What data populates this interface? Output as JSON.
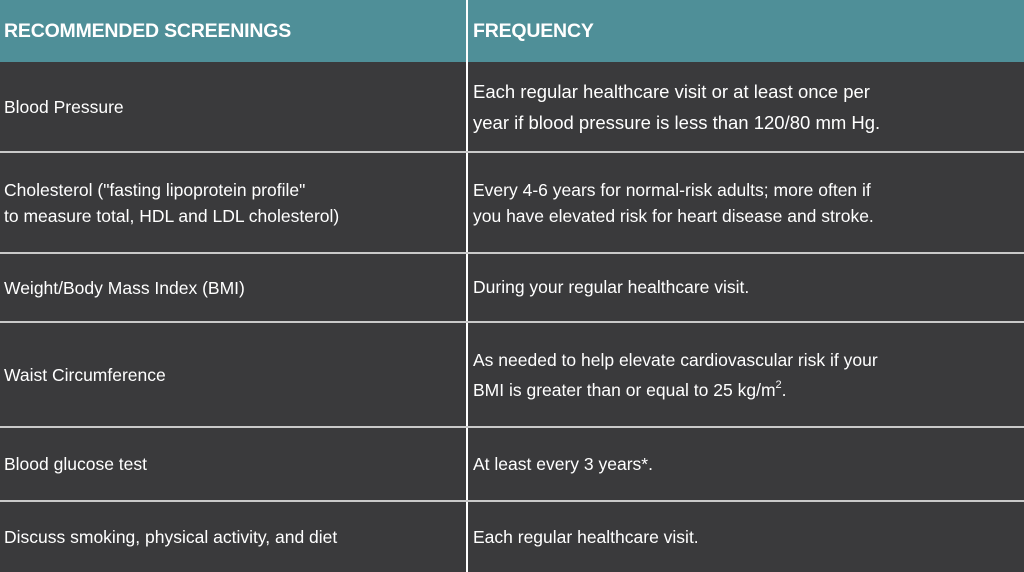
{
  "header": {
    "col1": "RECOMMENDED SCREENINGS",
    "col2": "FREQUENCY"
  },
  "rows": [
    {
      "screening": "Blood Pressure",
      "frequency_line1": "Each regular healthcare visit or at least once per",
      "frequency_line2": "year if blood pressure is less than 120/80 mm Hg."
    },
    {
      "screening_line1": "Cholesterol (\"fasting lipoprotein profile\"",
      "screening_line2": "to measure total, HDL and LDL cholesterol)",
      "frequency_line1": "Every 4-6 years for normal-risk adults; more often if",
      "frequency_line2": "you have elevated risk for heart disease and stroke."
    },
    {
      "screening": "Weight/Body Mass Index (BMI)",
      "frequency": "During your regular healthcare visit."
    },
    {
      "screening": "Waist Circumference",
      "frequency_line1": "As needed to help elevate cardiovascular risk if your",
      "frequency_line2": "BMI is greater than or equal to 25 kg/m",
      "frequency_sup": "2",
      "frequency_end": "."
    },
    {
      "screening": "Blood glucose test",
      "frequency": "At least every 3 years*."
    },
    {
      "screening": "Discuss smoking, physical activity, and diet",
      "frequency": "Each regular healthcare visit."
    }
  ],
  "colors": {
    "header_bg": "#4f8f98",
    "row_bg": "#3a3a3c",
    "text": "#ffffff",
    "divider": "#c9c9c9"
  }
}
